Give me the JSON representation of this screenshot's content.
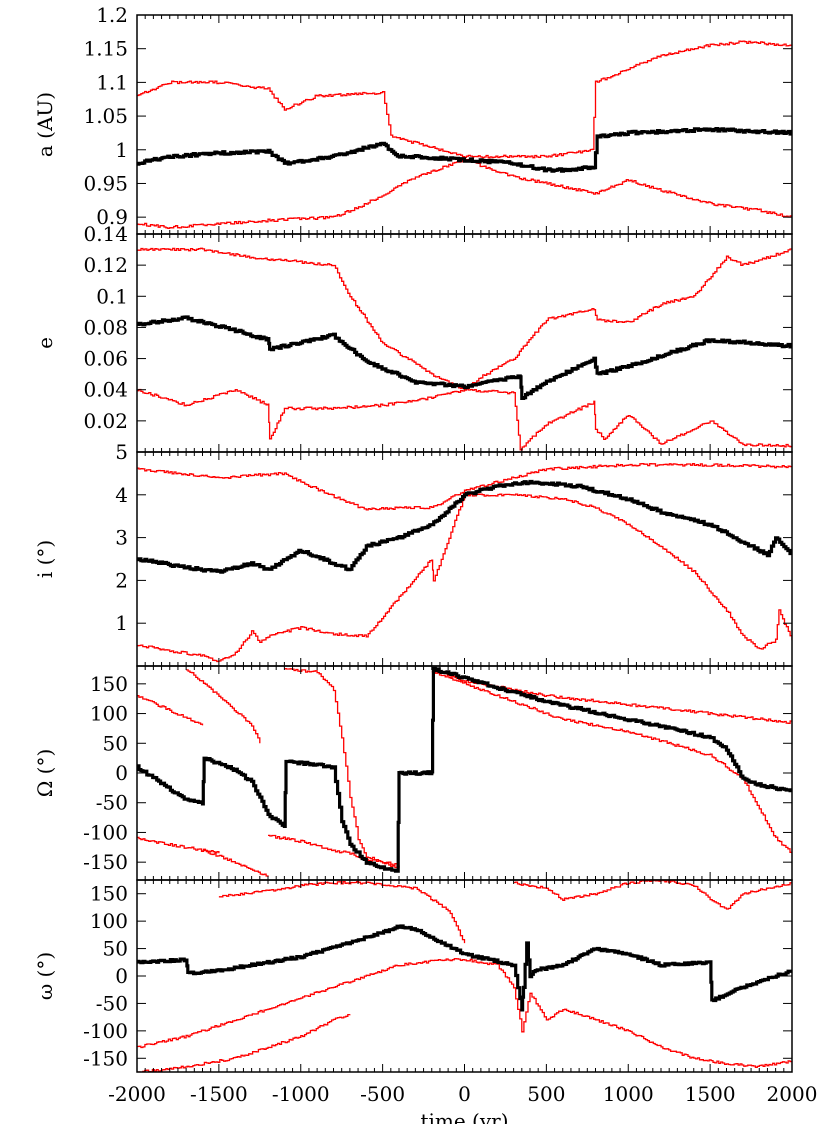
{
  "chart_data": [
    {
      "type": "line",
      "ylabel": "a (AU)",
      "xlim": [
        -2000,
        2000
      ],
      "ylim": [
        0.875,
        1.2
      ],
      "yticks": [
        "0.9",
        "0.95",
        "1",
        "1.05",
        "1.1",
        "1.15",
        "1.2"
      ],
      "series": [
        {
          "color": "#000000",
          "x": [
            -2000,
            -1800,
            -1500,
            -1200,
            -1100,
            -800,
            -500,
            -410,
            -300,
            0,
            300,
            500,
            650,
            790,
            810,
            1000,
            1500,
            2000
          ],
          "y": [
            0.98,
            0.99,
            0.995,
            0.998,
            0.98,
            0.99,
            1.01,
            0.99,
            0.99,
            0.985,
            0.98,
            0.97,
            0.97,
            0.975,
            1.02,
            1.025,
            1.03,
            1.025
          ]
        },
        {
          "color": "#ff0000",
          "x": [
            -2000,
            -1800,
            -1500,
            -1200,
            -1100,
            -900,
            -500,
            -450,
            -300,
            0,
            300,
            500,
            650,
            780,
            800,
            1000,
            1200,
            1500,
            1700,
            2000
          ],
          "y": [
            1.08,
            1.1,
            1.1,
            1.09,
            1.06,
            1.08,
            1.085,
            1.02,
            1.01,
            0.99,
            0.99,
            0.99,
            0.995,
            1.0,
            1.1,
            1.12,
            1.14,
            1.155,
            1.16,
            1.155
          ]
        },
        {
          "color": "#ff0000",
          "x": [
            -2000,
            -1800,
            -1500,
            -1200,
            -800,
            -600,
            -300,
            0,
            300,
            600,
            800,
            1000,
            1200,
            1500,
            1800,
            2000
          ],
          "y": [
            0.89,
            0.885,
            0.89,
            0.895,
            0.9,
            0.92,
            0.96,
            0.985,
            0.96,
            0.945,
            0.935,
            0.955,
            0.94,
            0.92,
            0.91,
            0.9
          ]
        }
      ]
    },
    {
      "type": "line",
      "ylabel": "e",
      "xlim": [
        -2000,
        2000
      ],
      "ylim": [
        0,
        0.14
      ],
      "yticks": [
        "0.02",
        "0.04",
        "0.06",
        "0.08",
        "0.1",
        "0.12",
        "0.14"
      ],
      "series": [
        {
          "color": "#000000",
          "x": [
            -2000,
            -1700,
            -1400,
            -1200,
            -1190,
            -800,
            -600,
            -300,
            0,
            300,
            340,
            350,
            500,
            790,
            810,
            1000,
            1500,
            2000
          ],
          "y": [
            0.082,
            0.086,
            0.078,
            0.072,
            0.066,
            0.075,
            0.058,
            0.045,
            0.042,
            0.048,
            0.048,
            0.035,
            0.045,
            0.06,
            0.05,
            0.055,
            0.072,
            0.068
          ]
        },
        {
          "color": "#ff0000",
          "x": [
            -2000,
            -1600,
            -1300,
            -800,
            -700,
            -500,
            -200,
            0,
            100,
            300,
            500,
            700,
            790,
            810,
            1000,
            1200,
            1400,
            1600,
            1700,
            2000
          ],
          "y": [
            0.13,
            0.13,
            0.125,
            0.12,
            0.1,
            0.07,
            0.05,
            0.04,
            0.048,
            0.06,
            0.085,
            0.09,
            0.092,
            0.085,
            0.083,
            0.095,
            0.1,
            0.125,
            0.12,
            0.13
          ]
        },
        {
          "color": "#ff0000",
          "x": [
            -2000,
            -1700,
            -1400,
            -1200,
            -1190,
            -1100,
            -800,
            -500,
            -200,
            0,
            300,
            320,
            340,
            500,
            790,
            800,
            850,
            1000,
            1200,
            1500,
            1700,
            2000
          ],
          "y": [
            0.04,
            0.03,
            0.04,
            0.03,
            0.008,
            0.028,
            0.028,
            0.03,
            0.035,
            0.04,
            0.038,
            0.02,
            0.002,
            0.018,
            0.032,
            0.015,
            0.008,
            0.024,
            0.005,
            0.02,
            0.005,
            0.004
          ]
        }
      ]
    },
    {
      "type": "line",
      "ylabel": "i (°)",
      "xlim": [
        -2000,
        2000
      ],
      "ylim": [
        0,
        5
      ],
      "yticks": [
        "1",
        "2",
        "3",
        "4",
        "5"
      ],
      "series": [
        {
          "color": "#000000",
          "x": [
            -2000,
            -1700,
            -1500,
            -1300,
            -1200,
            -1000,
            -800,
            -700,
            -600,
            -400,
            -200,
            0,
            200,
            400,
            700,
            1000,
            1200,
            1500,
            1700,
            1850,
            1900,
            2000
          ],
          "y": [
            2.5,
            2.3,
            2.2,
            2.4,
            2.25,
            2.7,
            2.4,
            2.25,
            2.8,
            3.0,
            3.3,
            4.0,
            4.2,
            4.3,
            4.2,
            3.9,
            3.6,
            3.3,
            2.9,
            2.6,
            3.0,
            2.6
          ]
        },
        {
          "color": "#ff0000",
          "x": [
            -2000,
            -1500,
            -1100,
            -1000,
            -700,
            -600,
            -400,
            -200,
            0,
            300,
            500,
            1000,
            1500,
            2000
          ],
          "y": [
            4.6,
            4.4,
            4.5,
            4.3,
            3.8,
            3.65,
            3.7,
            3.7,
            4.1,
            4.4,
            4.6,
            4.7,
            4.7,
            4.65
          ]
        },
        {
          "color": "#ff0000",
          "x": [
            -2000,
            -1800,
            -1600,
            -1500,
            -1400,
            -1300,
            -1250,
            -1200,
            -1000,
            -800,
            -600,
            -400,
            -200,
            -190,
            0,
            300,
            600,
            800,
            1000,
            1200,
            1400,
            1600,
            1700,
            1800,
            1900,
            1920,
            2000
          ],
          "y": [
            0.5,
            0.35,
            0.25,
            0.1,
            0.3,
            0.8,
            0.55,
            0.7,
            0.9,
            0.75,
            0.7,
            1.6,
            2.5,
            2.0,
            4.0,
            4.0,
            3.9,
            3.7,
            3.3,
            2.8,
            2.2,
            1.3,
            0.7,
            0.4,
            0.6,
            1.3,
            0.6
          ]
        }
      ]
    },
    {
      "type": "line",
      "ylabel": "Ω (°)",
      "xlim": [
        -2000,
        2000
      ],
      "ylim": [
        -180,
        180
      ],
      "yticks": [
        "-150",
        "-100",
        "-50",
        "0",
        "50",
        "100",
        "150"
      ],
      "series": [
        {
          "color": "#000000",
          "x": [
            -2000,
            -1700,
            -1600,
            -1590,
            -1400,
            -1300,
            -1200,
            -1100,
            -1090,
            -800,
            -750,
            -700,
            -600,
            -500,
            -410,
            -400,
            -200,
            -190,
            0,
            500,
            1000,
            1500,
            1600,
            1700,
            1800,
            2000
          ],
          "y": [
            10,
            -45,
            -50,
            25,
            5,
            -15,
            -70,
            -90,
            20,
            10,
            -80,
            -120,
            -150,
            -160,
            -165,
            0,
            0,
            175,
            160,
            120,
            90,
            60,
            40,
            -10,
            -20,
            -30
          ]
        },
        {
          "color": "#ff0000",
          "x": [
            -2000,
            -1800,
            -1600
          ],
          "y": [
            130,
            105,
            80
          ]
        },
        {
          "color": "#ff0000",
          "x": [
            -1700,
            -1500,
            -1300,
            -1250
          ],
          "y": [
            175,
            130,
            80,
            50
          ]
        },
        {
          "color": "#ff0000",
          "x": [
            -1200,
            -1000,
            -800,
            -700,
            -650,
            -600,
            -500,
            -400
          ],
          "y": [
            -105,
            -115,
            -130,
            -135,
            -140,
            -145,
            -150,
            -155
          ]
        },
        {
          "color": "#ff0000",
          "x": [
            -1100,
            -900,
            -800,
            -750,
            -700,
            -650,
            -600,
            -500,
            -400
          ],
          "y": [
            175,
            170,
            140,
            60,
            -40,
            -110,
            -140,
            -150,
            -160
          ]
        },
        {
          "color": "#ff0000",
          "x": [
            -200,
            0,
            500,
            1000,
            1500,
            2000
          ],
          "y": [
            175,
            155,
            130,
            115,
            100,
            85
          ]
        },
        {
          "color": "#ff0000",
          "x": [
            -200,
            0,
            300,
            600,
            1000,
            1500,
            1700,
            1800,
            1900,
            2000
          ],
          "y": [
            170,
            150,
            120,
            90,
            70,
            30,
            -10,
            -60,
            -110,
            -135
          ]
        },
        {
          "color": "#ff0000",
          "x": [
            -2000,
            -1700,
            -1500
          ],
          "y": [
            -110,
            -125,
            -135
          ]
        },
        {
          "color": "#ff0000",
          "x": [
            -1600,
            -1400,
            -1200
          ],
          "y": [
            -130,
            -150,
            -175
          ]
        }
      ]
    },
    {
      "type": "line",
      "xlabel": "time (yr)",
      "ylabel": "ω (°)",
      "xlim": [
        -2000,
        2000
      ],
      "ylim": [
        -175,
        175
      ],
      "yticks": [
        "-150",
        "-100",
        "-50",
        "0",
        "50",
        "100",
        "150"
      ],
      "xticks": [
        "-2000",
        "-1500",
        "-1000",
        "-500",
        "0",
        "500",
        "1000",
        "1500",
        "2000"
      ],
      "series": [
        {
          "color": "#000000",
          "x": [
            -2000,
            -1700,
            -1690,
            -1500,
            -1300,
            -1000,
            -600,
            -400,
            -300,
            -200,
            0,
            300,
            350,
            360,
            380,
            400,
            420,
            600,
            800,
            1000,
            1200,
            1500,
            1510,
            1700,
            2000
          ],
          "y": [
            25,
            30,
            5,
            10,
            20,
            35,
            70,
            90,
            85,
            70,
            40,
            20,
            -60,
            -20,
            60,
            0,
            10,
            20,
            50,
            40,
            20,
            25,
            -45,
            -20,
            10
          ]
        },
        {
          "color": "#ff0000",
          "x": [
            -1500,
            -1200,
            -1000,
            -800,
            -600,
            -300,
            -100,
            0
          ],
          "y": [
            145,
            155,
            165,
            170,
            170,
            160,
            120,
            60
          ]
        },
        {
          "color": "#ff0000",
          "x": [
            -2000,
            -1700,
            -1500,
            -1200,
            -1000,
            -800,
            -600,
            -400,
            -100,
            0,
            200,
            300,
            350,
            400,
            500,
            600,
            800,
            1000,
            1200,
            1400,
            1600,
            1800,
            2000
          ],
          "y": [
            -130,
            -110,
            -90,
            -60,
            -40,
            -20,
            0,
            20,
            30,
            30,
            20,
            -20,
            -100,
            -30,
            -80,
            -60,
            -80,
            -100,
            -130,
            -150,
            -160,
            -165,
            -155
          ]
        },
        {
          "color": "#ff0000",
          "x": [
            -2000,
            -1800,
            -1600,
            -1400,
            -1200,
            -1000,
            -800,
            -700
          ],
          "y": [
            -175,
            -170,
            -160,
            -150,
            -130,
            -110,
            -80,
            -70
          ]
        },
        {
          "color": "#ff0000",
          "x": [
            300,
            500,
            600,
            800,
            1000,
            1200,
            1400,
            1500,
            1600,
            1700,
            2000
          ],
          "y": [
            170,
            160,
            140,
            150,
            170,
            175,
            165,
            140,
            120,
            150,
            170
          ]
        }
      ]
    }
  ]
}
